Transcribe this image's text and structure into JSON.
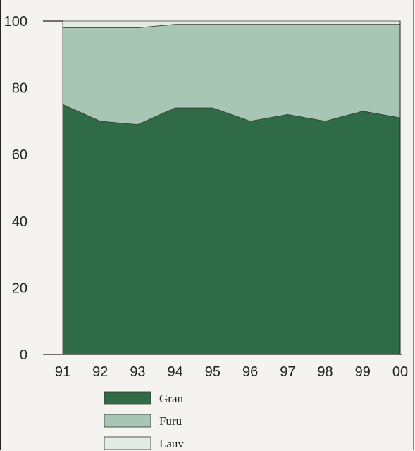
{
  "chart_data": {
    "type": "area",
    "stacked": true,
    "title": "",
    "xlabel": "",
    "ylabel": "",
    "categories": [
      "91",
      "92",
      "93",
      "94",
      "95",
      "96",
      "97",
      "98",
      "99",
      "00"
    ],
    "ylim": [
      0,
      100
    ],
    "yticks": [
      "0",
      "20",
      "40",
      "60",
      "80",
      "100"
    ],
    "grid": false,
    "legend_position": "bottom-left",
    "series": [
      {
        "name": "Gran",
        "color": "#2f6b47",
        "values": [
          75,
          70,
          69,
          74,
          74,
          70,
          72,
          70,
          73,
          71
        ]
      },
      {
        "name": "Furu",
        "color": "#a7c6b3",
        "values": [
          23,
          28,
          29,
          25,
          25,
          29,
          27,
          29,
          26,
          28
        ]
      },
      {
        "name": "Lauv",
        "color": "#e3ece4",
        "values": [
          2,
          2,
          2,
          1,
          1,
          1,
          1,
          1,
          1,
          1
        ]
      }
    ]
  }
}
